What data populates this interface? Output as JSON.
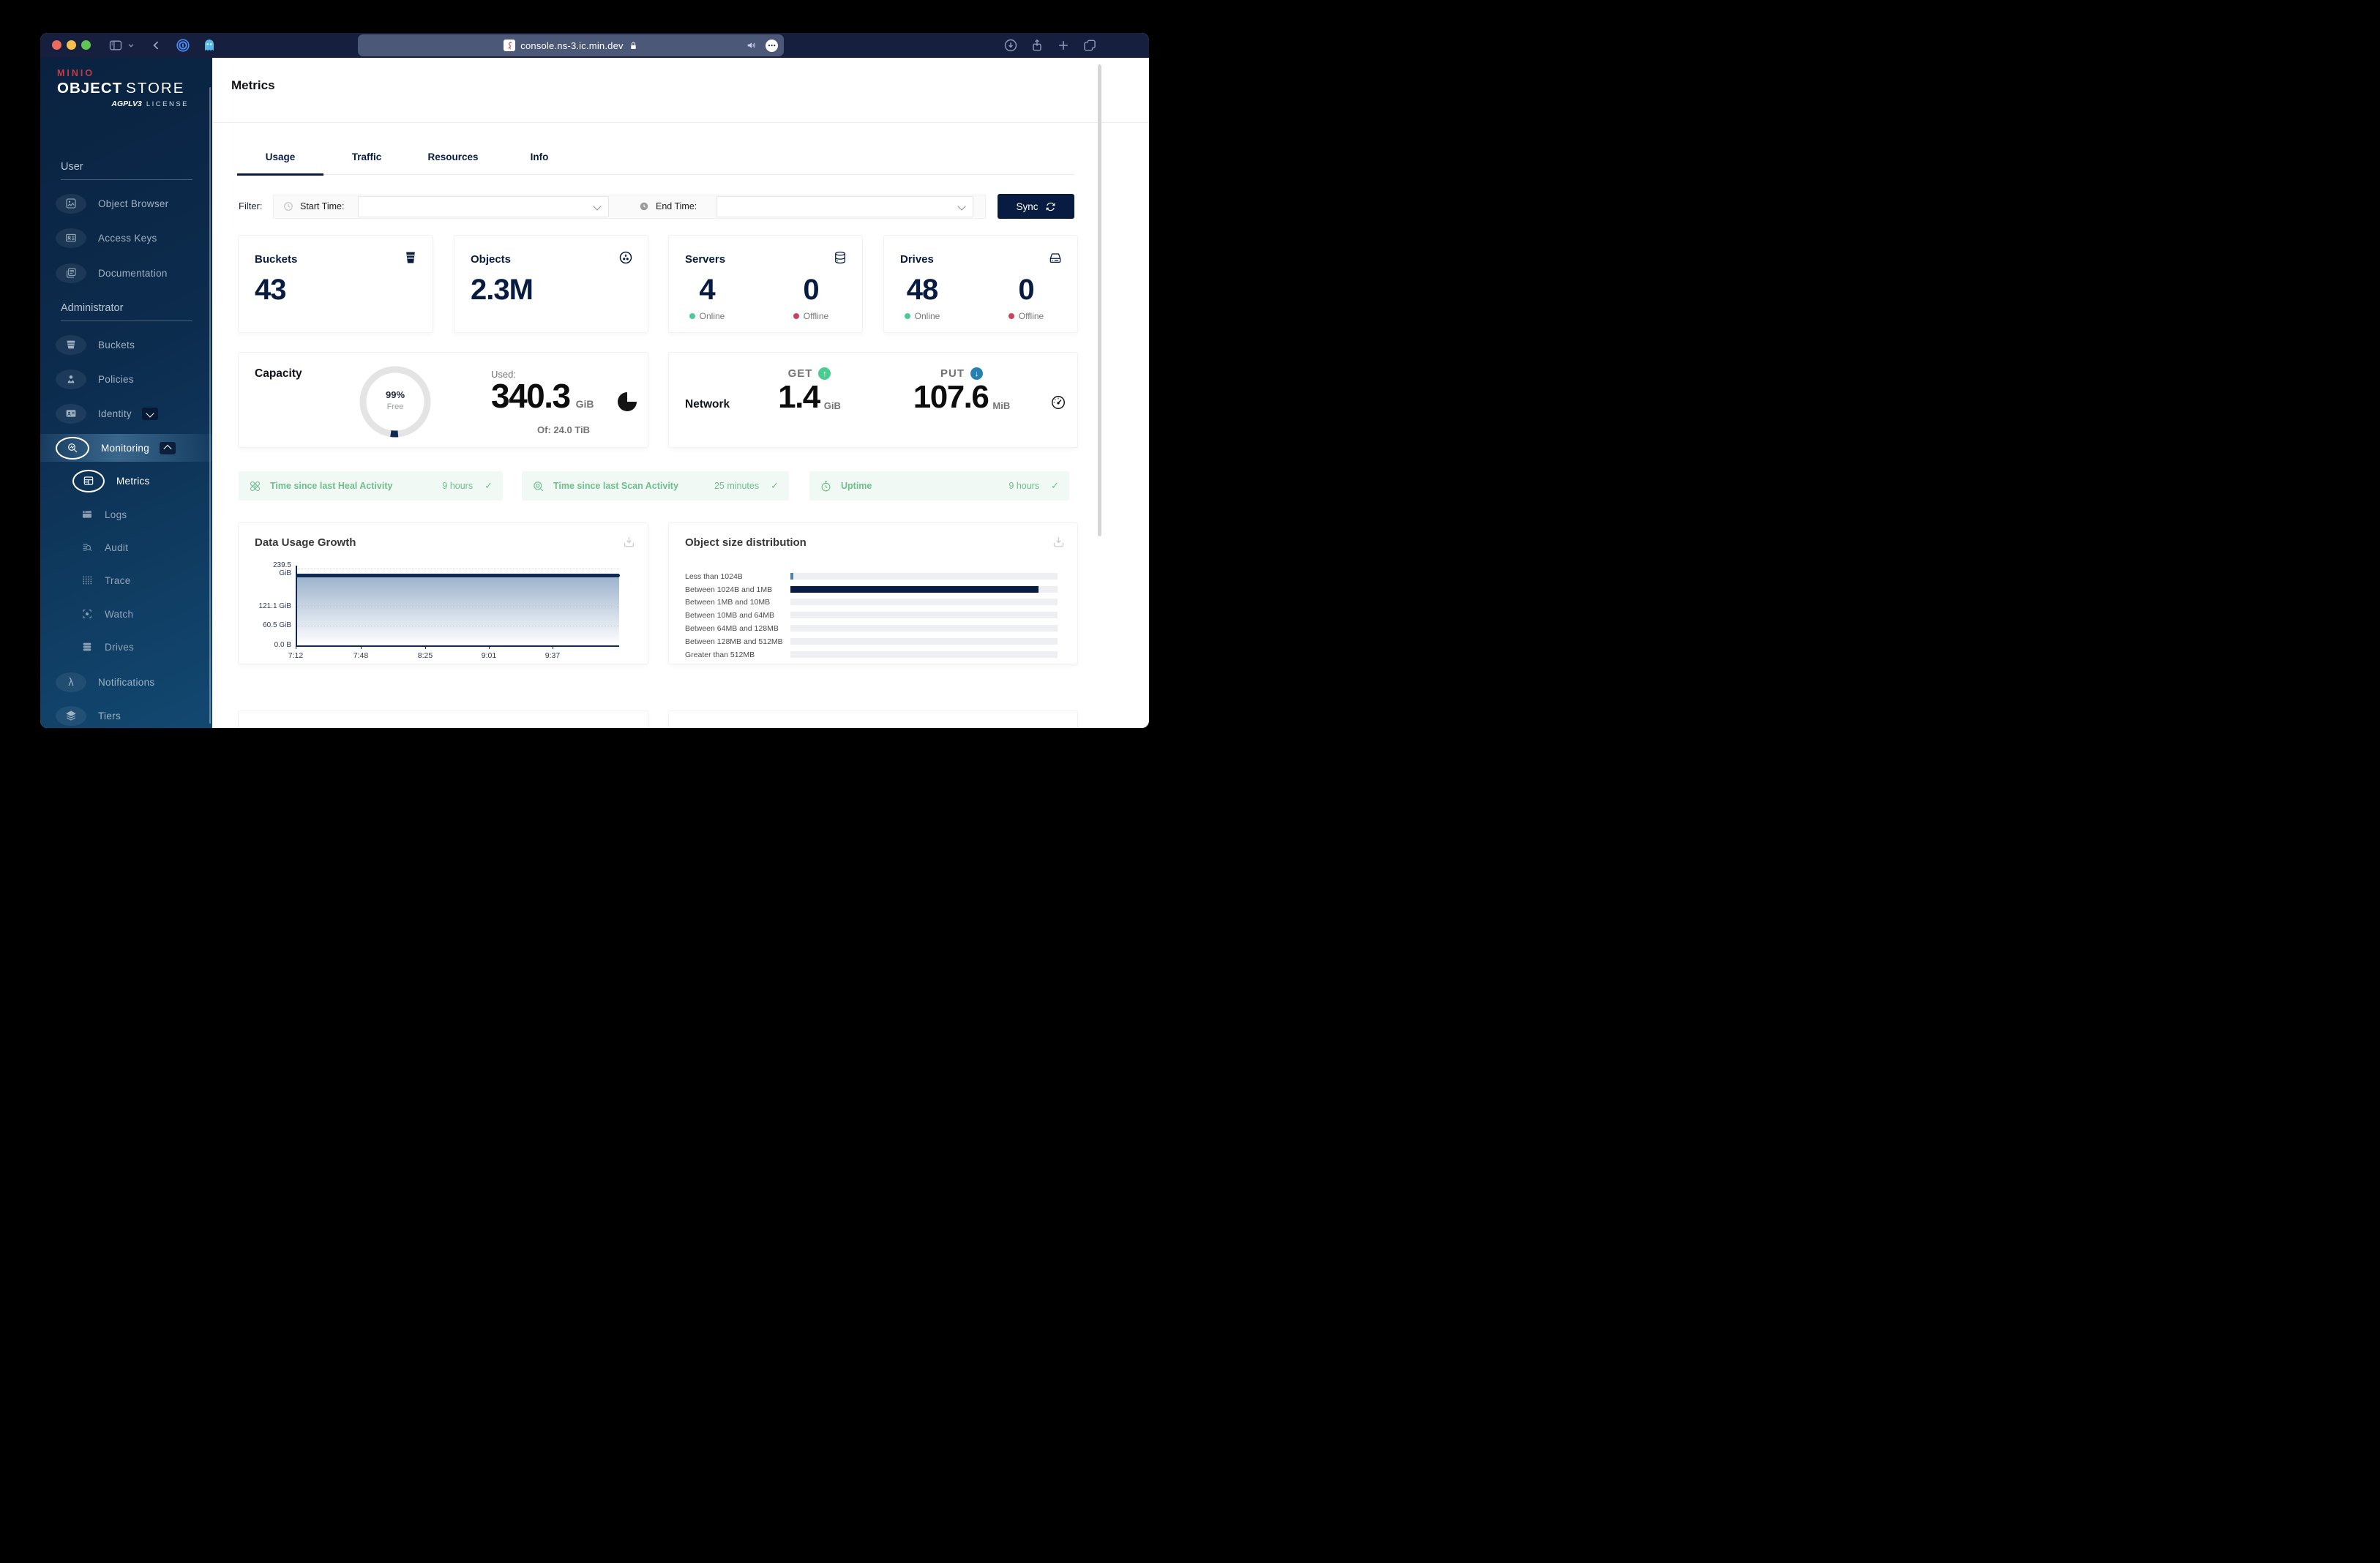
{
  "glyphs": {
    "check": "✓",
    "lambda": "λ",
    "ellipsis": "⋯",
    "up_arrow": "↑",
    "down_arrow": "↓"
  },
  "colors": {
    "navy": "#081c42",
    "green": "#4ccb92",
    "red": "#c9435a",
    "blue": "#2781b0",
    "pill_text": "#6fbe8d",
    "pill_bg": "#f0f9f3"
  },
  "browser": {
    "url": "console.ns-3.ic.min.dev"
  },
  "sidebar": {
    "logo": {
      "brand": "MINIO",
      "title_bold": "OBJECT",
      "title_light": "STORE",
      "license_badge": "AGPLV3",
      "license_label": "LICENSE"
    },
    "user_section": {
      "label": "User",
      "items": [
        {
          "label": "Object Browser"
        },
        {
          "label": "Access Keys"
        },
        {
          "label": "Documentation"
        }
      ]
    },
    "admin_section": {
      "label": "Administrator",
      "items": [
        {
          "label": "Buckets"
        },
        {
          "label": "Policies"
        },
        {
          "label": "Identity"
        },
        {
          "label": "Monitoring"
        }
      ]
    },
    "monitoring_children": [
      {
        "label": "Metrics"
      },
      {
        "label": "Logs"
      },
      {
        "label": "Audit"
      },
      {
        "label": "Trace"
      },
      {
        "label": "Watch"
      },
      {
        "label": "Drives"
      }
    ],
    "bottom_items": [
      {
        "label": "Notifications"
      },
      {
        "label": "Tiers"
      }
    ]
  },
  "main": {
    "title": "Metrics",
    "tabs": [
      {
        "label": "Usage"
      },
      {
        "label": "Traffic"
      },
      {
        "label": "Resources"
      },
      {
        "label": "Info"
      }
    ],
    "filter": {
      "label": "Filter:",
      "start_label": "Start Time:",
      "end_label": "End Time:",
      "sync_label": "Sync"
    },
    "stats": {
      "buckets": {
        "label": "Buckets",
        "value": "43"
      },
      "objects": {
        "label": "Objects",
        "value": "2.3M"
      },
      "servers": {
        "label": "Servers",
        "online_value": "4",
        "online_label": "Online",
        "offline_value": "0",
        "offline_label": "Offline"
      },
      "drives": {
        "label": "Drives",
        "online_value": "48",
        "online_label": "Online",
        "offline_value": "0",
        "offline_label": "Offline"
      }
    },
    "capacity": {
      "title": "Capacity",
      "percent": "99%",
      "free_label": "Free",
      "used_label": "Used:",
      "used_value": "340.3",
      "used_unit": "GiB",
      "total_label": "Of: 24.0 TiB"
    },
    "network": {
      "title": "Network",
      "get_label": "GET",
      "get_value": "1.4",
      "get_unit": "GiB",
      "put_label": "PUT",
      "put_value": "107.6",
      "put_unit": "MiB"
    },
    "status_pills": [
      {
        "label": "Time since last Heal Activity",
        "value": "9 hours"
      },
      {
        "label": "Time since last Scan Activity",
        "value": "25 minutes"
      },
      {
        "label": "Uptime",
        "value": "9 hours"
      }
    ]
  },
  "chart_data": [
    {
      "type": "area",
      "title": "Data Usage Growth",
      "x": [
        "7:12",
        "7:48",
        "8:25",
        "9:01",
        "9:37"
      ],
      "series": [
        {
          "name": "Data Usage",
          "values": [
            230,
            230,
            230,
            230,
            230
          ]
        }
      ],
      "unit": "GiB",
      "ylim": [
        0,
        239.5
      ],
      "grid": "dotted-horizontal",
      "legend": "none",
      "yticks": [
        {
          "line1": "239.5",
          "line2": "GiB"
        },
        {
          "line1": "121.1 GiB"
        },
        {
          "line1": "60.5 GiB"
        },
        {
          "line1": "0.0 B"
        }
      ]
    },
    {
      "type": "bar",
      "title": "Object size distribution",
      "orientation": "horizontal",
      "legend": "none",
      "categories": [
        "Less than 1024B",
        "Between 1024B and 1MB",
        "Between 1MB and 10MB",
        "Between 10MB and 64MB",
        "Between 64MB and 128MB",
        "Between 128MB and 512MB",
        "Greater than 512MB"
      ],
      "values_pct": [
        1,
        93,
        0,
        0,
        0,
        0,
        0
      ],
      "bar_fills": [
        "#4e7fae",
        "#081c42",
        "#081c42",
        "#081c42",
        "#081c42",
        "#081c42",
        "#081c42"
      ]
    }
  ]
}
